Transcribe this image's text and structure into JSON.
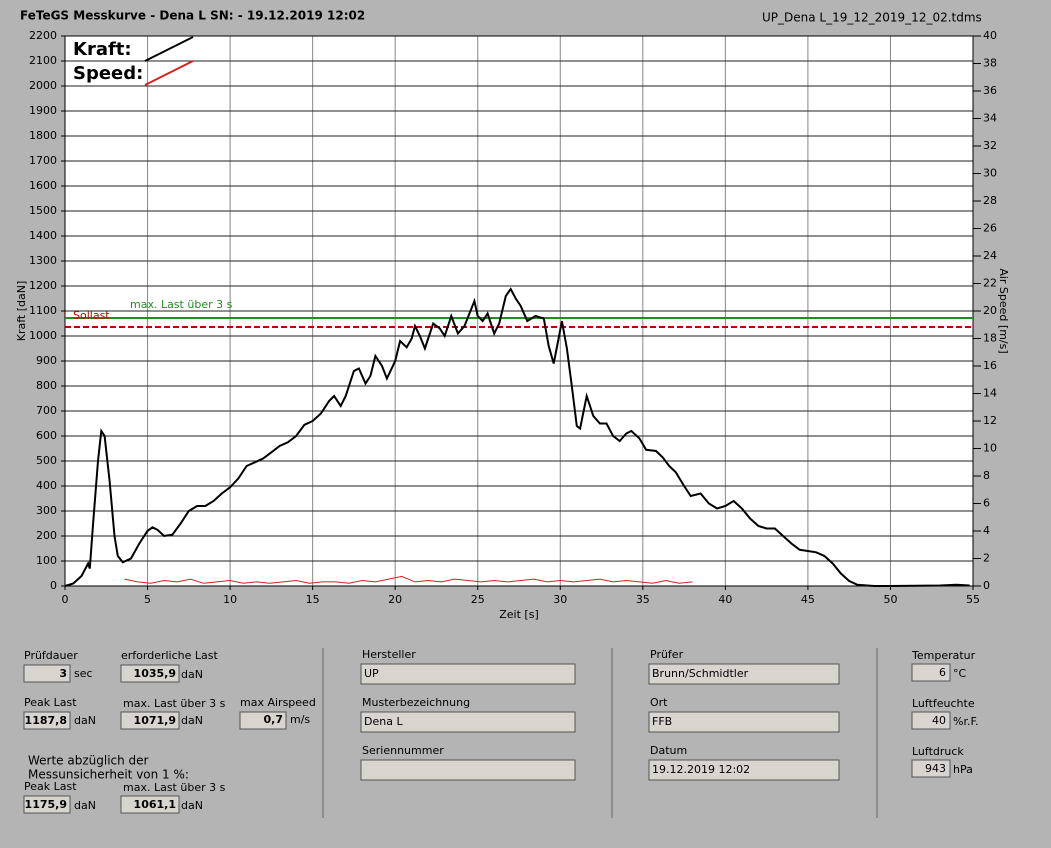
{
  "header": {
    "title": "FeTeGS Messkurve - Dena L  SN:  - 19.12.2019 12:02",
    "file": "UP_Dena L_19_12_2019_12_02.tdms"
  },
  "chart_data": {
    "type": "line",
    "x_label": "Zeit [s]",
    "y_label": "Kraft [daN]",
    "y2_label": "Air Speed [m/s]",
    "xlim": [
      0,
      55
    ],
    "xticks": [
      0,
      5,
      10,
      15,
      20,
      25,
      30,
      35,
      40,
      45,
      50,
      55
    ],
    "ylim": [
      0,
      2200
    ],
    "yticks": [
      0,
      100,
      200,
      300,
      400,
      500,
      600,
      700,
      800,
      900,
      1000,
      1100,
      1200,
      1300,
      1400,
      1500,
      1600,
      1700,
      1800,
      1900,
      2000,
      2100,
      2200
    ],
    "y2lim": [
      0,
      40
    ],
    "y2ticks": [
      0,
      2,
      4,
      6,
      8,
      10,
      12,
      14,
      16,
      18,
      20,
      22,
      24,
      26,
      28,
      30,
      32,
      34,
      36,
      38,
      40
    ],
    "grid": true,
    "legend": "upper left",
    "series": [
      {
        "name": "Kraft:",
        "color": "#000000",
        "x": [
          0,
          0.5,
          1,
          1.4,
          1.5,
          1.7,
          2,
          2.2,
          2.4,
          2.7,
          3,
          3.2,
          3.5,
          4,
          4.5,
          5,
          5.3,
          5.6,
          6,
          6.5,
          7,
          7.5,
          8,
          8.5,
          9,
          9.5,
          10,
          10.5,
          11,
          11.5,
          12,
          12.5,
          13,
          13.5,
          14,
          14.5,
          15,
          15.5,
          16,
          16.3,
          16.7,
          17,
          17.5,
          17.8,
          18.2,
          18.5,
          18.8,
          19.2,
          19.5,
          20,
          20.3,
          20.7,
          21,
          21.2,
          21.5,
          21.8,
          22,
          22.3,
          22.7,
          23,
          23.4,
          23.8,
          24.2,
          24.8,
          25,
          25.3,
          25.6,
          26,
          26.3,
          26.7,
          27,
          27.3,
          27.6,
          28,
          28.5,
          29,
          29.3,
          29.6,
          29.9,
          30.1,
          30.4,
          30.7,
          31,
          31.2,
          31.6,
          32,
          32.4,
          32.8,
          33.2,
          33.6,
          34,
          34.3,
          34.8,
          35.2,
          35.8,
          36.2,
          36.6,
          37,
          37.5,
          37.9,
          38.5,
          39,
          39.5,
          40,
          40.5,
          41,
          41.5,
          42,
          42.5,
          43,
          43.5,
          44,
          44.5,
          45,
          45.5,
          46,
          46.5,
          47,
          47.5,
          48,
          49,
          50,
          53,
          54,
          54.8
        ],
        "values": [
          0,
          10,
          40,
          90,
          70,
          250,
          500,
          620,
          600,
          420,
          200,
          120,
          95,
          110,
          170,
          220,
          235,
          225,
          200,
          205,
          250,
          300,
          320,
          320,
          340,
          370,
          395,
          430,
          480,
          495,
          510,
          535,
          560,
          575,
          600,
          645,
          660,
          690,
          740,
          760,
          720,
          760,
          860,
          870,
          810,
          840,
          920,
          880,
          830,
          900,
          980,
          955,
          990,
          1040,
          1000,
          950,
          990,
          1050,
          1030,
          1000,
          1080,
          1010,
          1040,
          1140,
          1080,
          1060,
          1090,
          1010,
          1050,
          1160,
          1188,
          1150,
          1120,
          1060,
          1080,
          1070,
          960,
          890,
          990,
          1060,
          950,
          800,
          640,
          630,
          760,
          680,
          650,
          650,
          600,
          580,
          610,
          620,
          590,
          545,
          540,
          515,
          480,
          455,
          400,
          360,
          370,
          330,
          310,
          320,
          340,
          310,
          270,
          240,
          230,
          230,
          200,
          170,
          145,
          140,
          135,
          120,
          90,
          50,
          20,
          5,
          0,
          0,
          2,
          5,
          2
        ]
      },
      {
        "name": "Speed:",
        "color": "#d42020",
        "axis": "y2",
        "x": [
          3.6,
          4.4,
          5.2,
          6,
          6.8,
          7.6,
          8.4,
          9.2,
          10,
          10.8,
          11.6,
          12.4,
          13.2,
          14,
          14.8,
          15.6,
          16.4,
          17.2,
          18,
          18.8,
          19.6,
          20.4,
          21.2,
          22,
          22.8,
          23.6,
          24.4,
          25.2,
          26,
          26.8,
          27.6,
          28.4,
          29.2,
          30,
          30.8,
          31.6,
          32.4,
          33.2,
          34,
          34.8,
          35.6,
          36.4,
          37.2,
          38
        ],
        "values": [
          0.5,
          0.3,
          0.2,
          0.4,
          0.3,
          0.5,
          0.2,
          0.3,
          0.4,
          0.2,
          0.3,
          0.2,
          0.3,
          0.4,
          0.2,
          0.3,
          0.3,
          0.2,
          0.4,
          0.3,
          0.5,
          0.7,
          0.3,
          0.4,
          0.3,
          0.5,
          0.4,
          0.3,
          0.4,
          0.3,
          0.4,
          0.5,
          0.3,
          0.4,
          0.3,
          0.4,
          0.5,
          0.3,
          0.4,
          0.3,
          0.2,
          0.4,
          0.2,
          0.3
        ]
      }
    ],
    "reference_lines": [
      {
        "label": "max. Last über  3 s",
        "value": 1071.9,
        "color": "#1f8f1f",
        "style": "solid"
      },
      {
        "label": "Sollast",
        "value": 1035.9,
        "color": "#c00000",
        "style": "dashed"
      }
    ]
  },
  "panel": {
    "pruefdauer": {
      "label": "Prüfdauer",
      "value": "3",
      "unit": "sec"
    },
    "erf_last": {
      "label": "erforderliche Last",
      "value": "1035,9",
      "unit": "daN"
    },
    "peak_last": {
      "label": "Peak Last",
      "value": "1187,8",
      "unit": "daN"
    },
    "max_last": {
      "label": "max. Last über  3 s",
      "value": "1071,9",
      "unit": "daN"
    },
    "max_airspeed": {
      "label": "max Airspeed",
      "value": "0,7",
      "unit": "m/s"
    },
    "note": [
      "Werte abzüglich der",
      "Messunsicherheit von 1  %:"
    ],
    "peak_last_corr": {
      "label": "Peak Last",
      "value": "1175,9",
      "unit": "daN"
    },
    "max_last_corr": {
      "label": "max. Last über  3 s",
      "value": "1061,1",
      "unit": "daN"
    },
    "hersteller": {
      "label": "Hersteller",
      "value": "UP"
    },
    "muster": {
      "label": "Musterbezeichnung",
      "value": "Dena L"
    },
    "serien": {
      "label": "Seriennummer"
    },
    "pruefer": {
      "label": "Prüfer",
      "value": "Brunn/Schmidtler"
    },
    "ort": {
      "label": "Ort",
      "value": "FFB"
    },
    "datum": {
      "label": "Datum",
      "value": "19.12.2019 12:02"
    },
    "temperatur": {
      "label": "Temperatur",
      "value": "6",
      "unit": "°C"
    },
    "luftfeuchte": {
      "label": "Luftfeuchte",
      "value": "40",
      "unit": "%r.F."
    },
    "luftdruck": {
      "label": "Luftdruck",
      "value": "943",
      "unit": "hPa"
    }
  }
}
